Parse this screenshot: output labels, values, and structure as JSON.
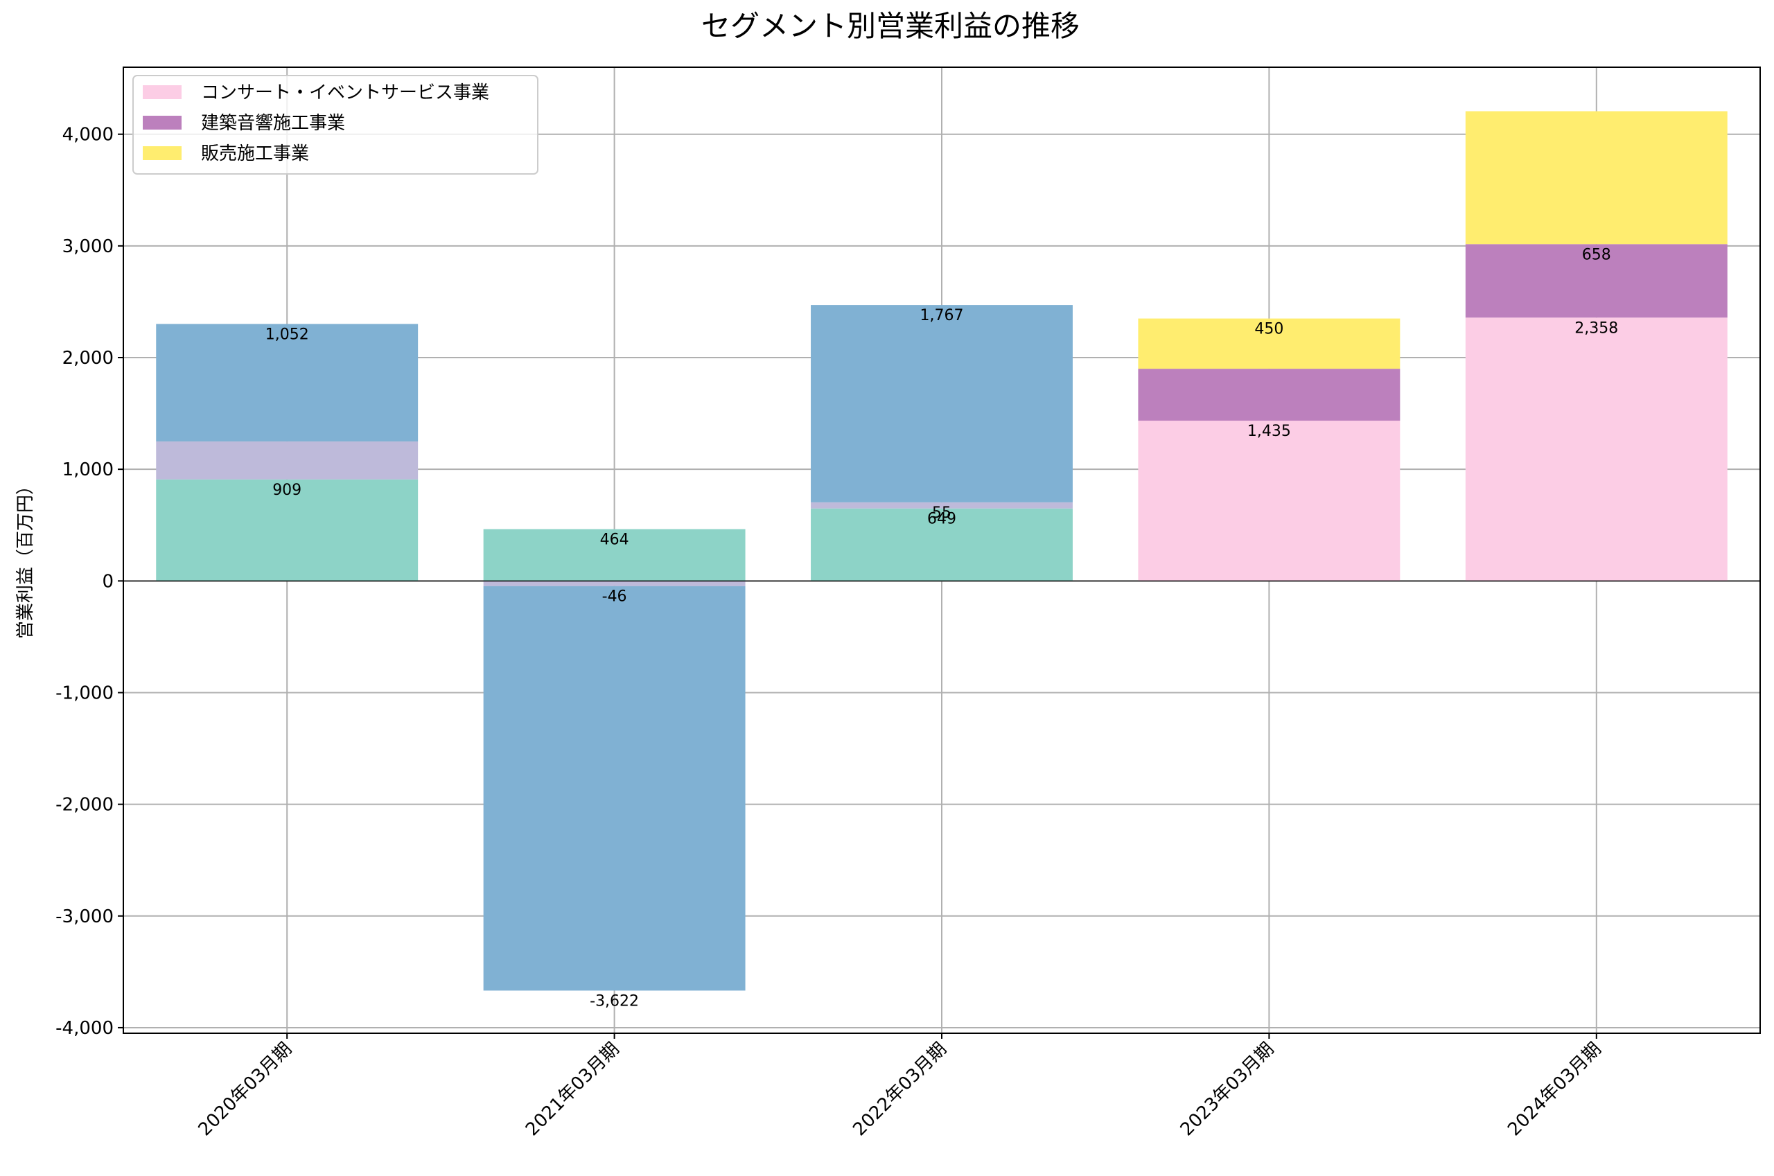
{
  "chart_data": {
    "type": "bar",
    "stacked": true,
    "title": "セグメント別営業利益の推移",
    "xlabel": "",
    "ylabel": "営業利益（百万円）",
    "ylim": [
      -4050,
      4600
    ],
    "yticks": [
      -4000,
      -3000,
      -2000,
      -1000,
      0,
      1000,
      2000,
      3000,
      4000
    ],
    "ytick_labels": [
      "-4,000",
      "-3,000",
      "-2,000",
      "-1,000",
      "0",
      "1,000",
      "2,000",
      "3,000",
      "4,000"
    ],
    "grid": true,
    "legend_position": "top-left",
    "categories": [
      "2020年03月期",
      "2021年03月期",
      "2022年03月期",
      "2023年03月期",
      "2024年03月期"
    ],
    "series": [
      {
        "name": "",
        "color": "#8dd3c7",
        "values": [
          909,
          464,
          649,
          null,
          null
        ]
      },
      {
        "name": "",
        "color": "#bebada",
        "values": [
          340,
          -46,
          55,
          null,
          null
        ]
      },
      {
        "name": "",
        "color": "#80b1d3",
        "values": [
          1052,
          -3622,
          1767,
          null,
          null
        ]
      },
      {
        "name": "コンサート・イベントサービス事業",
        "color": "#fccde5",
        "values": [
          null,
          null,
          null,
          1435,
          2358
        ]
      },
      {
        "name": "建築音響施工事業",
        "color": "#bc80bd",
        "values": [
          null,
          null,
          null,
          465,
          658
        ]
      },
      {
        "name": "販売施工事業",
        "color": "#ffed6f",
        "values": [
          null,
          null,
          null,
          450,
          1190
        ]
      }
    ],
    "data_labels": [
      {
        "category": 0,
        "series": 0,
        "text": "909"
      },
      {
        "category": 0,
        "series": 2,
        "text": "1,052"
      },
      {
        "category": 1,
        "series": 0,
        "text": "464"
      },
      {
        "category": 1,
        "series": 1,
        "text": "-46"
      },
      {
        "category": 1,
        "series": 2,
        "text": "-3,622"
      },
      {
        "category": 2,
        "series": 0,
        "text": "649"
      },
      {
        "category": 2,
        "series": 1,
        "text": "55"
      },
      {
        "category": 2,
        "series": 2,
        "text": "1,767"
      },
      {
        "category": 3,
        "series": 3,
        "text": "1,435"
      },
      {
        "category": 3,
        "series": 5,
        "text": "450"
      },
      {
        "category": 4,
        "series": 3,
        "text": "2,358"
      },
      {
        "category": 4,
        "series": 4,
        "text": "658"
      }
    ]
  }
}
